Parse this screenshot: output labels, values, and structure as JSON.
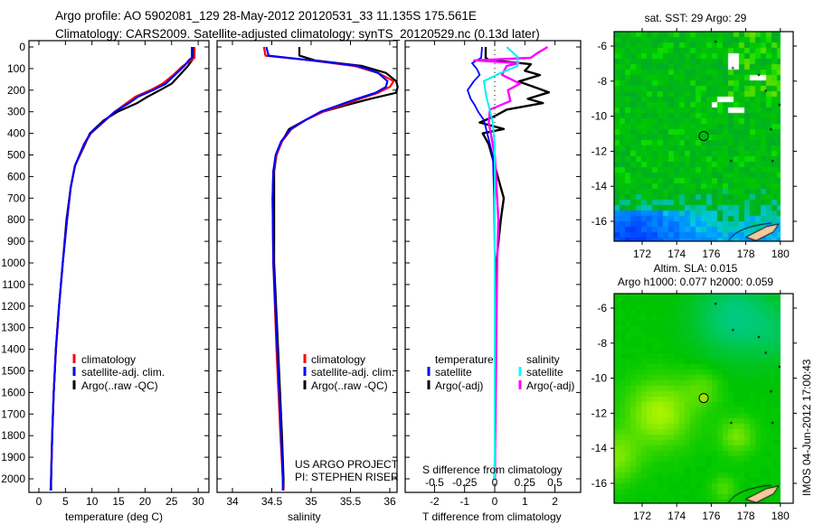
{
  "header": {
    "line1": "Argo profile: AO 5902081_129 28-May-2012 20120531_33 11.135S 175.561E",
    "line2": "Climatology: CARS2009. Satellite-adjusted climatology: synTS_20120529.nc (0.13d later)"
  },
  "colors": {
    "climatology": "#ff0000",
    "satellite": "#0000ff",
    "argo": "#000000",
    "sal_satellite": "#00f0f0",
    "sal_argo": "#ff00ff"
  },
  "chart_data": [
    {
      "type": "line",
      "name": "temperature",
      "xlabel": "temperature (deg C)",
      "xlim": [
        -2,
        32
      ],
      "xticks": [
        0,
        5,
        10,
        15,
        20,
        25,
        30
      ],
      "ylim": [
        2054,
        0
      ],
      "yticks": [
        0,
        100,
        200,
        300,
        400,
        500,
        600,
        700,
        800,
        900,
        1000,
        1100,
        1200,
        1300,
        1400,
        1500,
        1600,
        1700,
        1800,
        1900,
        2000
      ],
      "legend": [
        "climatology",
        "satellite-adj. clim.",
        "Argo(..raw -QC)"
      ],
      "depth": [
        0,
        50,
        60,
        90,
        130,
        170,
        200,
        230,
        260,
        300,
        340,
        400,
        450,
        550,
        650,
        800,
        1000,
        1200,
        1400,
        1600,
        1800,
        2000,
        2054
      ],
      "series": [
        {
          "name": "climatology",
          "values": [
            29.3,
            29.3,
            28.8,
            27.0,
            25.3,
            23.3,
            21.0,
            18.2,
            16.5,
            14.3,
            12.5,
            9.8,
            8.6,
            6.8,
            6.0,
            5.3,
            4.5,
            3.8,
            3.2,
            2.8,
            2.5,
            2.3,
            2.2
          ]
        },
        {
          "name": "satellite-adj. clim.",
          "values": [
            28.8,
            28.8,
            28.3,
            27.3,
            25.6,
            23.9,
            21.5,
            18.7,
            17.0,
            14.3,
            12.4,
            9.7,
            8.5,
            6.8,
            6.0,
            5.3,
            4.5,
            3.8,
            3.2,
            2.8,
            2.5,
            2.3,
            2.2
          ]
        },
        {
          "name": "Argo(..raw -QC)",
          "values": [
            29.1,
            29.1,
            28.9,
            28.0,
            26.5,
            25.0,
            22.8,
            20.5,
            18.5,
            14.8,
            12.2,
            9.6,
            8.7,
            6.8,
            6.0,
            5.2,
            4.5,
            3.8,
            3.2,
            2.8,
            2.5,
            2.3,
            2.3
          ]
        }
      ]
    },
    {
      "type": "line",
      "name": "salinity",
      "xlabel": "salinity",
      "xlim": [
        33.8,
        36.1
      ],
      "xticks": [
        "34",
        "34.5",
        "35",
        "35.5",
        "36"
      ],
      "legend": [
        "climatology",
        "satellite-adj. clim.",
        "Argo(..raw -QC)"
      ],
      "annotation": [
        "US ARGO PROJECT",
        "PI: STEPHEN RISER"
      ],
      "depth": [
        0,
        40,
        62,
        88,
        120,
        158,
        185,
        212,
        240,
        270,
        300,
        338,
        380,
        437,
        500,
        575,
        700,
        1000,
        1400,
        1800,
        2000,
        2054
      ],
      "series": [
        {
          "name": "climatology",
          "values": [
            34.4,
            34.42,
            35.0,
            35.55,
            35.85,
            36.05,
            36.0,
            35.85,
            35.62,
            35.39,
            35.15,
            34.93,
            34.75,
            34.63,
            34.56,
            34.52,
            34.51,
            34.52,
            34.56,
            34.61,
            34.64,
            34.65
          ]
        },
        {
          "name": "satellite-adj. clim.",
          "values": [
            34.43,
            34.46,
            35.0,
            35.6,
            35.85,
            35.97,
            35.95,
            35.82,
            35.58,
            35.35,
            35.12,
            34.93,
            34.74,
            34.62,
            34.55,
            34.52,
            34.51,
            34.52,
            34.57,
            34.62,
            34.64,
            34.64
          ]
        },
        {
          "name": "Argo(..raw -QC)",
          "values": [
            34.85,
            34.85,
            35.05,
            35.65,
            35.95,
            36.08,
            36.1,
            36.08,
            35.75,
            35.44,
            35.15,
            34.93,
            34.72,
            34.63,
            34.56,
            34.53,
            34.53,
            34.53,
            34.58,
            34.63,
            34.65,
            34.65
          ]
        }
      ]
    },
    {
      "type": "line",
      "name": "difference",
      "xlabel": "T difference from climatology",
      "xlabel_top": "S difference from climatology",
      "xlim_T": [
        -3,
        3
      ],
      "xticks_T": [
        "-2",
        "-1",
        "0",
        "1",
        "2"
      ],
      "xticks_S": [
        "-0.5",
        "-0.25",
        "0",
        "0.25",
        "0.5"
      ],
      "legend": {
        "temperature_title": "temperature",
        "salinity_title": "salinity",
        "t_sat": "satellite",
        "t_argo": "Argo(-adj)",
        "s_sat": "satellite",
        "s_argo": "Argo(-adj)"
      },
      "series": [
        {
          "name": "T satellite",
          "depth": [
            0,
            50,
            75,
            100,
            129,
            160,
            200,
            240,
            270,
            300,
            338,
            400,
            505,
            700,
            1000,
            2000
          ],
          "values": [
            -0.42,
            -0.45,
            -0.75,
            -0.6,
            -0.5,
            -0.7,
            -0.9,
            -0.8,
            -0.66,
            -0.55,
            -0.36,
            -0.25,
            -0.06,
            -0.02,
            0,
            0
          ]
        },
        {
          "name": "T Argo(-adj)",
          "depth": [
            0,
            50,
            60,
            80,
            110,
            130,
            160,
            190,
            210,
            240,
            260,
            290,
            320,
            350,
            380,
            400,
            450,
            550,
            700,
            800,
            1000,
            2000
          ],
          "values": [
            -0.3,
            -0.3,
            -0.2,
            1.2,
            1.0,
            1.5,
            0.8,
            1.4,
            1.8,
            1.1,
            1.6,
            0.4,
            0.0,
            -0.5,
            0.3,
            -0.4,
            -0.2,
            0,
            0.3,
            0.2,
            0.05,
            0.0
          ]
        },
        {
          "name": "S satellite",
          "depth": [
            0,
            46,
            88,
            120,
            158,
            229,
            338,
            450,
            700,
            1000,
            2000
          ],
          "values": [
            0.1,
            0.19,
            0.19,
            0.05,
            -0.09,
            -0.07,
            -0.02,
            0,
            0,
            0,
            0
          ]
        },
        {
          "name": "S Argo(-adj)",
          "depth": [
            0,
            30,
            50,
            62,
            75,
            88,
            129,
            170,
            200,
            250,
            290,
            350,
            500,
            800,
            1000,
            2000
          ],
          "values": [
            0.44,
            0.35,
            0.3,
            -0.17,
            0.2,
            0.1,
            0.06,
            0.21,
            0.11,
            0.13,
            -0.04,
            -0.05,
            0,
            0.03,
            0.02,
            0
          ]
        }
      ]
    },
    {
      "type": "heatmap",
      "name": "sst-map",
      "title": "sat. SST: 29 Argo: 29",
      "xticks": [
        "172",
        "174",
        "176",
        "178",
        "180"
      ],
      "yticks": [
        "-6",
        "-8",
        "-10",
        "-12",
        "-14",
        "-16"
      ],
      "xlim": [
        170.4,
        180.8
      ],
      "ylim": [
        -17.1,
        -5.2
      ],
      "argo_position": {
        "lon": 175.561,
        "lat": -11.135
      }
    },
    {
      "type": "heatmap",
      "name": "sla-map",
      "title": "Altim. SLA: 0.015",
      "subtitle": "Argo h1000: 0.077 h2000: 0.059",
      "xticks": [
        "172",
        "174",
        "176",
        "178",
        "180"
      ],
      "yticks": [
        "-6",
        "-8",
        "-10",
        "-12",
        "-14",
        "-16"
      ],
      "xlim": [
        170.4,
        180.8
      ],
      "ylim": [
        -17.1,
        -5.2
      ],
      "argo_position": {
        "lon": 175.561,
        "lat": -11.135
      }
    }
  ],
  "footer": {
    "stamp": "IMOS 04-Jun-2012 17:00:43"
  }
}
